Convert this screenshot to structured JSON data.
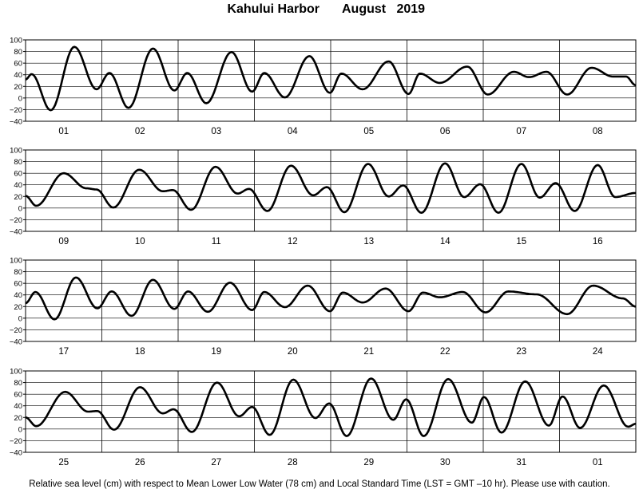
{
  "header": {
    "station": "Kahului Harbor",
    "month": "August",
    "year": "2019"
  },
  "footer": {
    "note": "Relative sea level (cm) with respect to Mean Lower Low Water (78 cm) and Local Standard Time (LST = GMT –10 hr). Please use with caution."
  },
  "chart_data": {
    "type": "line",
    "title": "Kahului Harbor August 2019",
    "xlabel": "",
    "ylabel": "",
    "ylim": [
      -40,
      100
    ],
    "yticks": [
      -40,
      -20,
      0,
      20,
      40,
      60,
      80,
      100
    ],
    "ytick_labels": [
      "−40",
      "−20",
      "0",
      "20",
      "40",
      "60",
      "80",
      "100"
    ],
    "grid": "vertical lines at day boundaries",
    "line_color": "#000000",
    "panels": [
      {
        "days": [
          "01",
          "02",
          "03",
          "04",
          "05",
          "06",
          "07",
          "08"
        ],
        "extrema": [
          [
            0,
            32
          ],
          [
            0.08,
            41
          ],
          [
            0.33,
            -21
          ],
          [
            0.64,
            88
          ],
          [
            0.93,
            15
          ],
          [
            1.1,
            43
          ],
          [
            1.35,
            -17
          ],
          [
            1.67,
            85
          ],
          [
            1.95,
            13
          ],
          [
            2.12,
            43
          ],
          [
            2.37,
            -9
          ],
          [
            2.7,
            79
          ],
          [
            2.97,
            11
          ],
          [
            3.13,
            43
          ],
          [
            3.4,
            1
          ],
          [
            3.72,
            72
          ],
          [
            3.99,
            9
          ],
          [
            4.14,
            42
          ],
          [
            4.42,
            15
          ],
          [
            4.76,
            63
          ],
          [
            5.02,
            7
          ],
          [
            5.17,
            42
          ],
          [
            5.43,
            26
          ],
          [
            5.79,
            54
          ],
          [
            6.06,
            6
          ],
          [
            6.4,
            45
          ],
          [
            6.6,
            36
          ],
          [
            6.83,
            45
          ],
          [
            7.1,
            6
          ],
          [
            7.42,
            52
          ],
          [
            7.7,
            37
          ],
          [
            7.87,
            37
          ],
          [
            8.0,
            22
          ]
        ]
      },
      {
        "days": [
          "09",
          "10",
          "11",
          "12",
          "13",
          "14",
          "15",
          "16"
        ],
        "extrema": [
          [
            0,
            21
          ],
          [
            0.14,
            4
          ],
          [
            0.5,
            60
          ],
          [
            0.8,
            34
          ],
          [
            0.93,
            32
          ],
          [
            1.15,
            1
          ],
          [
            1.49,
            66
          ],
          [
            1.8,
            29
          ],
          [
            1.93,
            31
          ],
          [
            2.17,
            -3
          ],
          [
            2.49,
            71
          ],
          [
            2.78,
            25
          ],
          [
            2.93,
            33
          ],
          [
            3.17,
            -5
          ],
          [
            3.48,
            73
          ],
          [
            3.77,
            22
          ],
          [
            3.95,
            36
          ],
          [
            4.18,
            -7
          ],
          [
            4.49,
            76
          ],
          [
            4.76,
            20
          ],
          [
            4.95,
            39
          ],
          [
            5.19,
            -8
          ],
          [
            5.5,
            77
          ],
          [
            5.75,
            19
          ],
          [
            5.96,
            41
          ],
          [
            6.2,
            -8
          ],
          [
            6.5,
            76
          ],
          [
            6.74,
            18
          ],
          [
            6.95,
            43
          ],
          [
            7.2,
            -5
          ],
          [
            7.5,
            74
          ],
          [
            7.73,
            19
          ],
          [
            8.0,
            26
          ]
        ]
      },
      {
        "days": [
          "17",
          "18",
          "19",
          "20",
          "21",
          "22",
          "23",
          "24"
        ],
        "extrema": [
          [
            0,
            26
          ],
          [
            0.13,
            45
          ],
          [
            0.38,
            -2
          ],
          [
            0.66,
            70
          ],
          [
            0.94,
            17
          ],
          [
            1.13,
            46
          ],
          [
            1.39,
            4
          ],
          [
            1.67,
            66
          ],
          [
            1.95,
            16
          ],
          [
            2.13,
            46
          ],
          [
            2.39,
            11
          ],
          [
            2.68,
            61
          ],
          [
            2.97,
            14
          ],
          [
            3.13,
            45
          ],
          [
            3.4,
            19
          ],
          [
            3.7,
            56
          ],
          [
            3.99,
            12
          ],
          [
            4.16,
            44
          ],
          [
            4.42,
            27
          ],
          [
            4.72,
            51
          ],
          [
            5.02,
            12
          ],
          [
            5.21,
            44
          ],
          [
            5.43,
            36
          ],
          [
            5.73,
            45
          ],
          [
            6.03,
            10
          ],
          [
            6.33,
            46
          ],
          [
            6.7,
            41
          ],
          [
            7.1,
            7
          ],
          [
            7.44,
            56
          ],
          [
            7.83,
            34
          ],
          [
            8.0,
            20
          ]
        ]
      },
      {
        "days": [
          "25",
          "26",
          "27",
          "28",
          "29",
          "30",
          "31",
          "01"
        ],
        "extrema": [
          [
            0,
            20
          ],
          [
            0.14,
            5
          ],
          [
            0.52,
            64
          ],
          [
            0.82,
            30
          ],
          [
            0.94,
            31
          ],
          [
            1.16,
            -1
          ],
          [
            1.5,
            72
          ],
          [
            1.8,
            27
          ],
          [
            1.94,
            34
          ],
          [
            2.18,
            -5
          ],
          [
            2.51,
            80
          ],
          [
            2.8,
            22
          ],
          [
            2.97,
            38
          ],
          [
            3.2,
            -10
          ],
          [
            3.51,
            85
          ],
          [
            3.8,
            19
          ],
          [
            3.98,
            44
          ],
          [
            4.21,
            -12
          ],
          [
            4.53,
            87
          ],
          [
            4.82,
            16
          ],
          [
            4.99,
            51
          ],
          [
            5.22,
            -12
          ],
          [
            5.54,
            86
          ],
          [
            5.85,
            11
          ],
          [
            6.01,
            55
          ],
          [
            6.24,
            -6
          ],
          [
            6.55,
            82
          ],
          [
            6.86,
            6
          ],
          [
            7.04,
            56
          ],
          [
            7.27,
            2
          ],
          [
            7.58,
            75
          ],
          [
            7.9,
            4
          ],
          [
            8.0,
            9
          ]
        ]
      }
    ]
  }
}
